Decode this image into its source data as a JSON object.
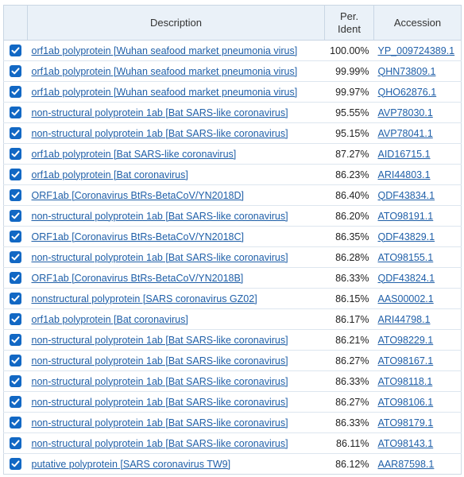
{
  "headers": {
    "description": "Description",
    "per_ident_line1": "Per.",
    "per_ident_line2": "Ident",
    "accession": "Accession"
  },
  "colors": {
    "checkbox": "#1268c4",
    "link": "#1f5fa8",
    "header_bg": "#eaf1f8"
  },
  "rows": [
    {
      "description": "orf1ab polyprotein [Wuhan seafood market pneumonia virus]",
      "ident": "100.00%",
      "accession": "YP_009724389.1",
      "checked": true
    },
    {
      "description": "orf1ab polyprotein [Wuhan seafood market pneumonia virus]",
      "ident": "99.99%",
      "accession": "QHN73809.1",
      "checked": true
    },
    {
      "description": "orf1ab polyprotein [Wuhan seafood market pneumonia virus]",
      "ident": "99.97%",
      "accession": "QHO62876.1",
      "checked": true
    },
    {
      "description": "non-structural polyprotein 1ab [Bat SARS-like coronavirus]",
      "ident": "95.55%",
      "accession": "AVP78030.1",
      "checked": true
    },
    {
      "description": "non-structural polyprotein 1ab [Bat SARS-like coronavirus]",
      "ident": "95.15%",
      "accession": "AVP78041.1",
      "checked": true
    },
    {
      "description": "orf1ab polyprotein [Bat SARS-like coronavirus]",
      "ident": "87.27%",
      "accession": "AID16715.1",
      "checked": true
    },
    {
      "description": "orf1ab polyprotein [Bat coronavirus]",
      "ident": "86.23%",
      "accession": "ARI44803.1",
      "checked": true
    },
    {
      "description": "ORF1ab [Coronavirus BtRs-BetaCoV/YN2018D]",
      "ident": "86.40%",
      "accession": "QDF43834.1",
      "checked": true
    },
    {
      "description": "non-structural polyprotein 1ab [Bat SARS-like coronavirus]",
      "ident": "86.20%",
      "accession": "ATO98191.1",
      "checked": true
    },
    {
      "description": "ORF1ab [Coronavirus BtRs-BetaCoV/YN2018C]",
      "ident": "86.35%",
      "accession": "QDF43829.1",
      "checked": true
    },
    {
      "description": "non-structural polyprotein 1ab [Bat SARS-like coronavirus]",
      "ident": "86.28%",
      "accession": "ATO98155.1",
      "checked": true
    },
    {
      "description": "ORF1ab [Coronavirus BtRs-BetaCoV/YN2018B]",
      "ident": "86.33%",
      "accession": "QDF43824.1",
      "checked": true
    },
    {
      "description": "nonstructural polyprotein [SARS coronavirus GZ02]",
      "ident": "86.15%",
      "accession": "AAS00002.1",
      "checked": true
    },
    {
      "description": "orf1ab polyprotein [Bat coronavirus]",
      "ident": "86.17%",
      "accession": "ARI44798.1",
      "checked": true
    },
    {
      "description": "non-structural polyprotein 1ab [Bat SARS-like coronavirus]",
      "ident": "86.21%",
      "accession": "ATO98229.1",
      "checked": true
    },
    {
      "description": "non-structural polyprotein 1ab [Bat SARS-like coronavirus]",
      "ident": "86.27%",
      "accession": "ATO98167.1",
      "checked": true
    },
    {
      "description": "non-structural polyprotein 1ab [Bat SARS-like coronavirus]",
      "ident": "86.33%",
      "accession": "ATO98118.1",
      "checked": true
    },
    {
      "description": "non-structural polyprotein 1ab [Bat SARS-like coronavirus]",
      "ident": "86.27%",
      "accession": "ATO98106.1",
      "checked": true
    },
    {
      "description": "non-structural polyprotein 1ab [Bat SARS-like coronavirus]",
      "ident": "86.33%",
      "accession": "ATO98179.1",
      "checked": true
    },
    {
      "description": "non-structural polyprotein 1ab [Bat SARS-like coronavirus]",
      "ident": "86.11%",
      "accession": "ATO98143.1",
      "checked": true
    },
    {
      "description": "putative polyprotein [SARS coronavirus TW9]",
      "ident": "86.12%",
      "accession": "AAR87598.1",
      "checked": true
    }
  ]
}
